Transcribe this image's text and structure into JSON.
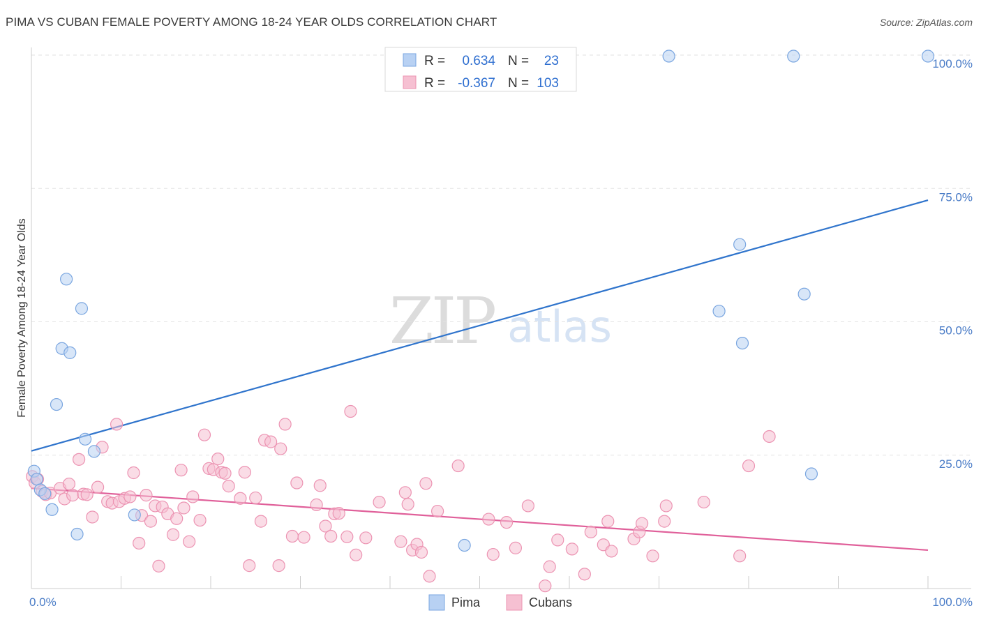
{
  "title": "PIMA VS CUBAN FEMALE POVERTY AMONG 18-24 YEAR OLDS CORRELATION CHART",
  "source": "Source: ZipAtlas.com",
  "watermark": {
    "zip": "ZIP",
    "atlas": "atlas"
  },
  "colors": {
    "pima_fill": "#b8d1f3",
    "pima_stroke": "#7aa6e0",
    "pima_line": "#2f74cc",
    "cubans_fill": "#f6c0d2",
    "cubans_stroke": "#ec93b2",
    "cubans_line": "#e0609a",
    "tick_text": "#4a7cc7"
  },
  "legend": {
    "r_label": "R =",
    "n_label": "N =",
    "rows": [
      {
        "series": "pima",
        "r": "0.634",
        "n": "23"
      },
      {
        "series": "cubans",
        "r": "-0.367",
        "n": "103"
      }
    ]
  },
  "chart_data": {
    "type": "scatter",
    "ylabel": "Female Poverty Among 18-24 Year Olds",
    "xlim": [
      0,
      100
    ],
    "ylim": [
      0,
      100
    ],
    "x_tick_labels": {
      "min": "0.0%",
      "max": "100.0%"
    },
    "y_ticks": [
      {
        "value": 25,
        "label": "25.0%"
      },
      {
        "value": 50,
        "label": "50.0%"
      },
      {
        "value": 75,
        "label": "75.0%"
      },
      {
        "value": 100,
        "label": "100.0%"
      }
    ],
    "grid": true,
    "legend_position": "bottom-center",
    "series": [
      {
        "name": "Pima",
        "key": "pima",
        "trend": {
          "x0": 0,
          "y0": 25.8,
          "x1": 100,
          "y1": 72.8
        },
        "points": [
          [
            0.3,
            22.0
          ],
          [
            0.6,
            20.5
          ],
          [
            1.0,
            18.5
          ],
          [
            1.5,
            17.8
          ],
          [
            2.3,
            14.8
          ],
          [
            2.8,
            34.5
          ],
          [
            3.4,
            45.0
          ],
          [
            3.9,
            58.0
          ],
          [
            4.3,
            44.2
          ],
          [
            5.1,
            10.2
          ],
          [
            5.6,
            52.5
          ],
          [
            6.0,
            28.0
          ],
          [
            7.0,
            25.7
          ],
          [
            11.5,
            13.8
          ],
          [
            48.3,
            8.1
          ],
          [
            71.1,
            99.8
          ],
          [
            76.7,
            52.0
          ],
          [
            79.0,
            64.5
          ],
          [
            79.3,
            46.0
          ],
          [
            85.0,
            99.8
          ],
          [
            86.2,
            55.2
          ],
          [
            87.0,
            21.5
          ],
          [
            100.0,
            99.8
          ]
        ]
      },
      {
        "name": "Cubans",
        "key": "cubans",
        "trend": {
          "x0": 0,
          "y0": 18.8,
          "x1": 100,
          "y1": 7.2
        },
        "points": [
          [
            0.1,
            21.0
          ],
          [
            0.4,
            19.8
          ],
          [
            0.7,
            20.5
          ],
          [
            1.2,
            18.2
          ],
          [
            1.6,
            17.6
          ],
          [
            2.1,
            17.9
          ],
          [
            3.2,
            18.8
          ],
          [
            3.7,
            16.8
          ],
          [
            4.2,
            19.6
          ],
          [
            4.6,
            17.5
          ],
          [
            5.3,
            24.2
          ],
          [
            5.8,
            17.7
          ],
          [
            6.2,
            17.6
          ],
          [
            6.8,
            13.4
          ],
          [
            7.4,
            19.0
          ],
          [
            7.9,
            26.5
          ],
          [
            8.5,
            16.3
          ],
          [
            9.0,
            16.0
          ],
          [
            9.5,
            30.8
          ],
          [
            9.8,
            16.3
          ],
          [
            10.4,
            16.9
          ],
          [
            11.0,
            17.2
          ],
          [
            11.4,
            21.7
          ],
          [
            12.0,
            8.5
          ],
          [
            12.3,
            13.7
          ],
          [
            12.8,
            17.5
          ],
          [
            13.3,
            12.6
          ],
          [
            13.8,
            15.5
          ],
          [
            14.2,
            4.2
          ],
          [
            14.6,
            15.3
          ],
          [
            15.2,
            14.0
          ],
          [
            15.8,
            10.1
          ],
          [
            16.2,
            13.1
          ],
          [
            16.7,
            22.2
          ],
          [
            17.0,
            15.1
          ],
          [
            17.6,
            8.8
          ],
          [
            18.0,
            17.2
          ],
          [
            18.8,
            12.8
          ],
          [
            19.3,
            28.8
          ],
          [
            19.8,
            22.5
          ],
          [
            20.3,
            22.3
          ],
          [
            20.8,
            24.3
          ],
          [
            21.2,
            21.8
          ],
          [
            21.6,
            21.6
          ],
          [
            22.0,
            19.2
          ],
          [
            23.3,
            16.9
          ],
          [
            23.8,
            21.8
          ],
          [
            24.3,
            4.3
          ],
          [
            25.0,
            17.0
          ],
          [
            25.6,
            12.6
          ],
          [
            26.0,
            27.8
          ],
          [
            26.7,
            27.5
          ],
          [
            27.6,
            4.3
          ],
          [
            27.8,
            26.2
          ],
          [
            28.3,
            30.8
          ],
          [
            29.1,
            9.8
          ],
          [
            29.6,
            19.8
          ],
          [
            30.4,
            9.6
          ],
          [
            31.8,
            15.7
          ],
          [
            32.2,
            19.3
          ],
          [
            32.8,
            11.7
          ],
          [
            33.4,
            9.8
          ],
          [
            33.8,
            14.0
          ],
          [
            34.3,
            14.1
          ],
          [
            35.2,
            9.7
          ],
          [
            35.6,
            33.2
          ],
          [
            36.2,
            6.3
          ],
          [
            37.3,
            9.5
          ],
          [
            38.8,
            16.2
          ],
          [
            41.2,
            8.8
          ],
          [
            41.7,
            18.0
          ],
          [
            42.0,
            15.8
          ],
          [
            42.5,
            7.2
          ],
          [
            43.0,
            8.3
          ],
          [
            43.5,
            6.8
          ],
          [
            44.0,
            19.7
          ],
          [
            44.4,
            2.3
          ],
          [
            45.3,
            14.5
          ],
          [
            47.6,
            23.0
          ],
          [
            51.0,
            13.0
          ],
          [
            51.5,
            6.4
          ],
          [
            53.0,
            12.4
          ],
          [
            54.0,
            7.6
          ],
          [
            55.4,
            15.5
          ],
          [
            57.3,
            0.5
          ],
          [
            57.8,
            4.1
          ],
          [
            58.7,
            9.1
          ],
          [
            60.3,
            7.4
          ],
          [
            61.7,
            2.7
          ],
          [
            62.4,
            10.6
          ],
          [
            63.8,
            8.2
          ],
          [
            64.3,
            12.6
          ],
          [
            64.7,
            7.0
          ],
          [
            67.2,
            9.3
          ],
          [
            67.8,
            10.6
          ],
          [
            68.1,
            12.2
          ],
          [
            69.3,
            6.1
          ],
          [
            70.6,
            12.6
          ],
          [
            70.8,
            15.5
          ],
          [
            75.0,
            16.2
          ],
          [
            79.0,
            6.1
          ],
          [
            80.0,
            23.0
          ],
          [
            82.3,
            28.5
          ]
        ]
      }
    ]
  },
  "bottom_legend": [
    {
      "series": "pima",
      "label": "Pima"
    },
    {
      "series": "cubans",
      "label": "Cubans"
    }
  ]
}
